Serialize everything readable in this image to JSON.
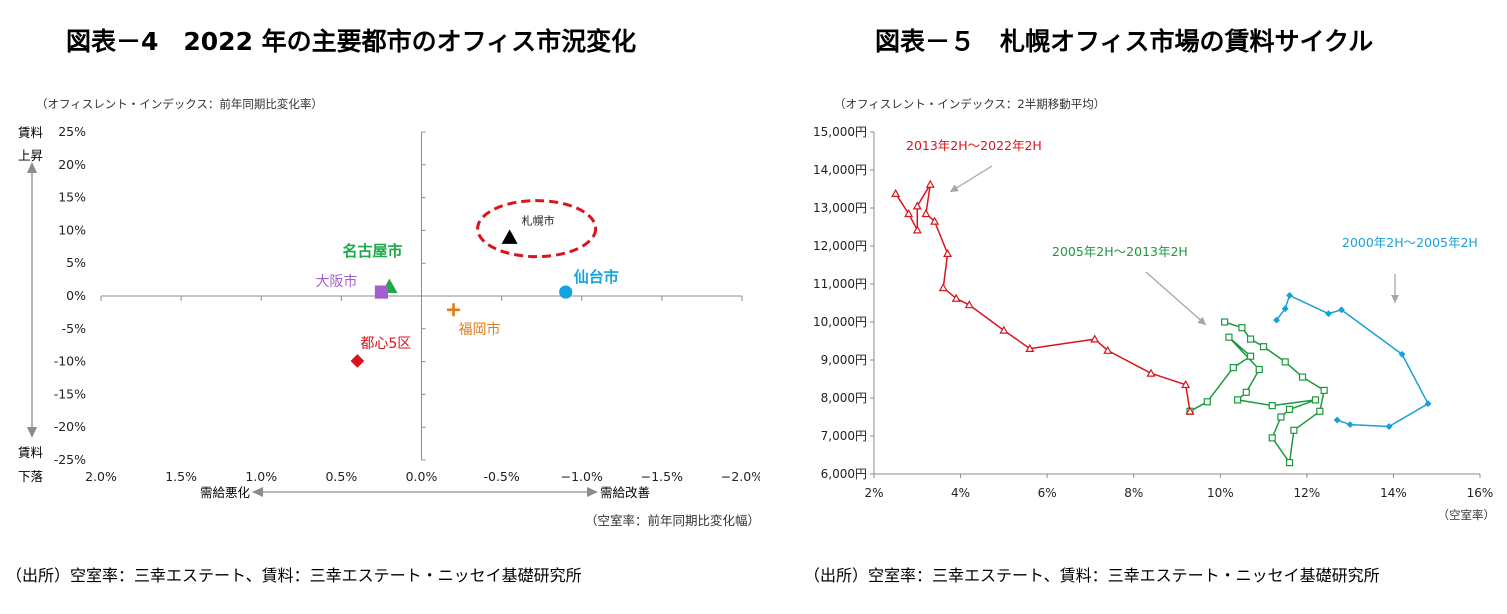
{
  "left": {
    "title": "図表－4　2022 年の主要都市のオフィス市況変化",
    "source": "（出所）空室率：三幸エステート、賃料：三幸エステート・ニッセイ基礎研究所",
    "chart_data": {
      "type": "scatter",
      "title": "図表－4　2022 年の主要都市のオフィス市況変化",
      "ylabel": "（オフィスレント・インデックス：前年同期比変化率）",
      "xlabel": "（空室率：前年同期比変化幅）",
      "x_reversed": true,
      "xlim": [
        2.0,
        -2.0
      ],
      "ylim": [
        -25,
        25
      ],
      "x_ticks": [
        2.0,
        1.5,
        1.0,
        0.5,
        0.0,
        -0.5,
        -1.0,
        -1.5,
        -2.0
      ],
      "x_tick_labels": [
        "2.0%",
        "1.5%",
        "1.0%",
        "0.5%",
        "0.0%",
        "-0.5%",
        "−1.0%",
        "−1.5%",
        "−2.0%"
      ],
      "y_ticks": [
        25,
        20,
        15,
        10,
        5,
        0,
        -5,
        -10,
        -15,
        -20,
        -25
      ],
      "y_tick_labels": [
        "25%",
        "20%",
        "15%",
        "10%",
        "5%",
        "0%",
        "-5%",
        "-10%",
        "-15%",
        "-20%",
        "-25%"
      ],
      "axis_notes": {
        "y_top": "賃料",
        "y_top2": "上昇",
        "y_bottom": "賃料",
        "y_bottom2": "下落",
        "x_left": "需給悪化",
        "x_right": "需給改善"
      },
      "points": [
        {
          "label": "札幌市",
          "x": -0.55,
          "y": 8.9,
          "marker": "triangle",
          "color": "#000000",
          "highlight": true
        },
        {
          "label": "名古屋市",
          "x": 0.2,
          "y": 1.4,
          "marker": "triangle",
          "color": "#1ea84a"
        },
        {
          "label": "大阪市",
          "x": 0.25,
          "y": 0.6,
          "marker": "square",
          "color": "#a45fcf"
        },
        {
          "label": "仙台市",
          "x": -0.9,
          "y": 0.6,
          "marker": "circle",
          "color": "#16a2e0"
        },
        {
          "label": "福岡市",
          "x": -0.2,
          "y": -2.1,
          "marker": "plus",
          "color": "#e07b1a"
        },
        {
          "label": "都心5区",
          "x": 0.4,
          "y": -9.9,
          "marker": "diamond",
          "color": "#d9141c"
        }
      ],
      "highlight_color": "#d9141c"
    }
  },
  "right": {
    "title": "図表－５　札幌オフィス市場の賃料サイクル",
    "source": "（出所）空室率：三幸エステート、賃料：三幸エステート・ニッセイ基礎研究所",
    "chart_data": {
      "type": "line",
      "title": "図表－５　札幌オフィス市場の賃料サイクル",
      "ylabel": "（オフィスレント・インデックス：2半期移動平均）",
      "xlabel": "（空室率）",
      "xlim": [
        2,
        16
      ],
      "ylim": [
        6000,
        15000
      ],
      "x_ticks": [
        2,
        4,
        6,
        8,
        10,
        12,
        14,
        16
      ],
      "x_tick_labels": [
        "2%",
        "4%",
        "6%",
        "8%",
        "10%",
        "12%",
        "14%",
        "16%"
      ],
      "y_ticks": [
        6000,
        7000,
        8000,
        9000,
        10000,
        11000,
        12000,
        13000,
        14000,
        15000
      ],
      "y_tick_labels": [
        "6,000円",
        "7,000円",
        "8,000円",
        "9,000円",
        "10,000円",
        "11,000円",
        "12,000円",
        "13,000円",
        "14,000円",
        "15,000円"
      ],
      "series": [
        {
          "name": "2000年2H～2005年2H",
          "color": "#1b9fd8",
          "marker": "diamond",
          "points": [
            [
              11.3,
              10050
            ],
            [
              11.5,
              10350
            ],
            [
              11.6,
              10700
            ],
            [
              12.5,
              10220
            ],
            [
              12.8,
              10320
            ],
            [
              14.2,
              9150
            ],
            [
              14.8,
              7850
            ],
            [
              13.9,
              7250
            ],
            [
              13.0,
              7300
            ],
            [
              12.7,
              7420
            ]
          ]
        },
        {
          "name": "2005年2H～2013年2H",
          "color": "#1a9a3c",
          "marker": "square",
          "points": [
            [
              10.1,
              10000
            ],
            [
              10.5,
              9850
            ],
            [
              10.7,
              9550
            ],
            [
              11.0,
              9350
            ],
            [
              11.5,
              8950
            ],
            [
              11.9,
              8550
            ],
            [
              12.4,
              8200
            ],
            [
              12.3,
              7650
            ],
            [
              11.7,
              7150
            ],
            [
              11.6,
              6300
            ],
            [
              11.2,
              6950
            ],
            [
              11.4,
              7500
            ],
            [
              11.6,
              7700
            ],
            [
              12.2,
              7950
            ],
            [
              11.2,
              7800
            ],
            [
              10.4,
              7950
            ],
            [
              10.6,
              8150
            ],
            [
              10.9,
              8750
            ],
            [
              10.2,
              9600
            ],
            [
              10.7,
              9100
            ],
            [
              10.3,
              8800
            ],
            [
              9.7,
              7900
            ],
            [
              9.3,
              7650
            ]
          ]
        },
        {
          "name": "2013年2H～2022年2H",
          "color": "#d9141c",
          "marker": "triangle",
          "points": [
            [
              9.3,
              7650
            ],
            [
              9.2,
              8350
            ],
            [
              8.4,
              8650
            ],
            [
              7.4,
              9250
            ],
            [
              7.1,
              9550
            ],
            [
              5.6,
              9300
            ],
            [
              5.0,
              9780
            ],
            [
              4.2,
              10450
            ],
            [
              3.9,
              10620
            ],
            [
              3.6,
              10900
            ],
            [
              3.7,
              11800
            ],
            [
              3.4,
              12650
            ],
            [
              3.2,
              12850
            ],
            [
              3.3,
              13620
            ],
            [
              3.0,
              13050
            ],
            [
              3.0,
              12420
            ],
            [
              2.8,
              12850
            ],
            [
              2.5,
              13380
            ]
          ]
        }
      ],
      "annotations": [
        {
          "text": "2013年2H～2022年2H",
          "color": "#d9141c"
        },
        {
          "text": "2005年2H～2013年2H",
          "color": "#1a9a3c"
        },
        {
          "text": "2000年2H～2005年2H",
          "color": "#1b9fd8"
        }
      ]
    }
  }
}
